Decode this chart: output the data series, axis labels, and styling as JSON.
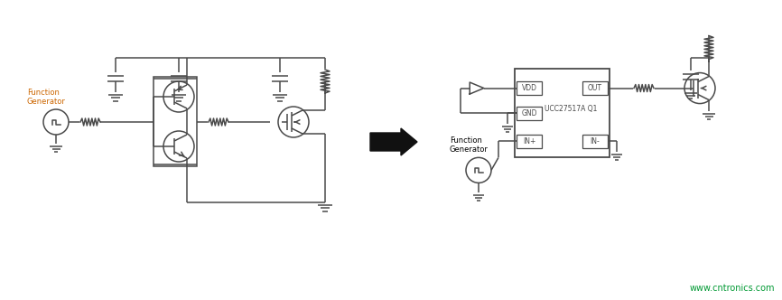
{
  "bg_color": "#ffffff",
  "line_color": "#4a4a4a",
  "text_color": "#000000",
  "orange_text": "#cc6600",
  "green_text": "#009933",
  "fig_width": 8.66,
  "fig_height": 3.32,
  "watermark": "www.cntronics.com",
  "arrow_color": "#111111",
  "ic_label": "UCC27517A Q1",
  "ic_ports_left": [
    "VDD",
    "GND",
    "IN+"
  ],
  "ic_ports_right": [
    "OUT",
    "",
    "IN-"
  ],
  "func_gen_label_left": "Function\nGenerator",
  "func_gen_label_right": "Function\nGenerator"
}
